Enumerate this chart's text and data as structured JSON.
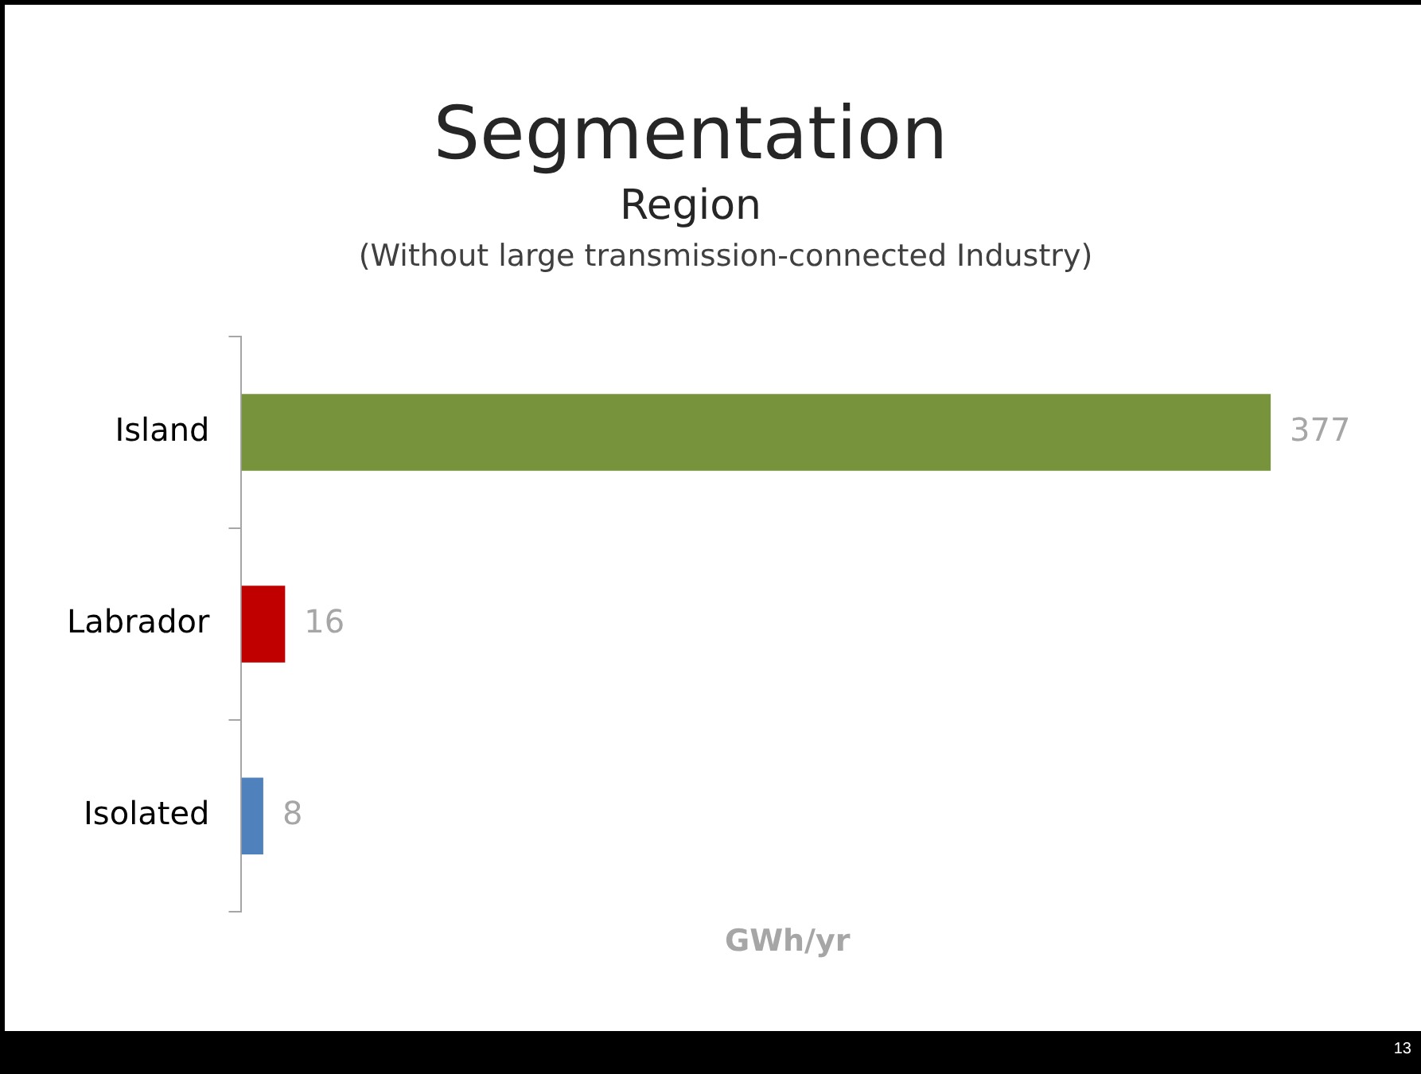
{
  "chart_data": {
    "type": "bar",
    "orientation": "horizontal",
    "title": "Segmentation",
    "subtitle": "Region",
    "annotations": [
      "(Without large transmission-connected Industry)",
      "13"
    ],
    "xlabel": "GWh/yr",
    "categories": [
      "Island",
      "Labrador",
      "Isolated"
    ],
    "values": [
      377,
      16,
      8
    ],
    "colors": [
      "#77933c",
      "#c00000",
      "#4f81bd"
    ],
    "data_labels": true,
    "grid": false,
    "legend": false
  }
}
